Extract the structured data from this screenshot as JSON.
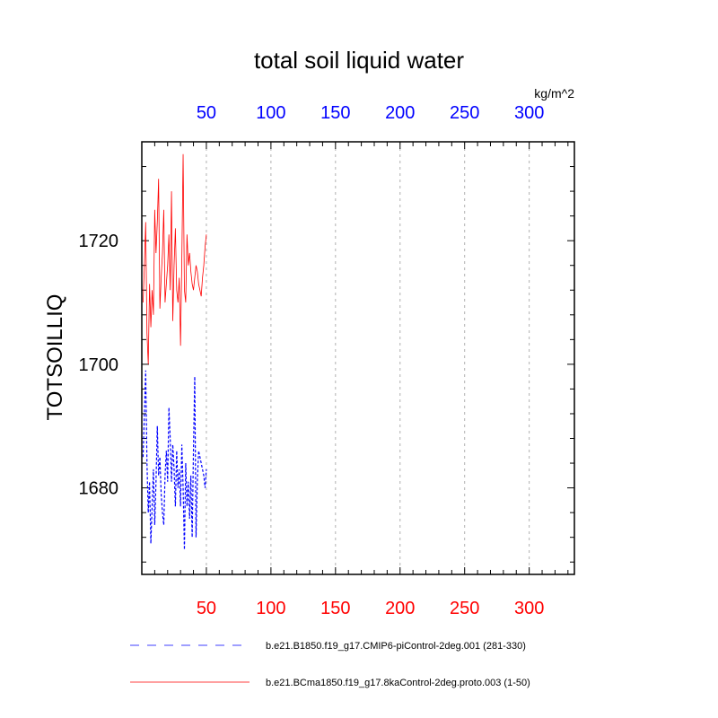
{
  "chart_data": {
    "type": "line",
    "title": "total soil liquid water",
    "units": "kg/m^2",
    "ylabel": "TOTSOILLIQ",
    "xlim": [
      0,
      335
    ],
    "ylim": [
      1666,
      1736
    ],
    "x_ticks_bottom": [
      50,
      100,
      150,
      200,
      250,
      300
    ],
    "x_ticks_top": [
      50,
      100,
      150,
      200,
      250,
      300
    ],
    "y_ticks": [
      1680,
      1700,
      1720
    ],
    "grid": "vertical dashed at major x ticks",
    "legend_position": "bottom",
    "series": [
      {
        "name": "b.e21.B1850.f19_g17.CMIP6-piControl-2deg.001 (281-330)",
        "color": "#0000ff",
        "style": "dashed",
        "x": [
          1,
          2,
          3,
          4,
          5,
          6,
          7,
          8,
          9,
          10,
          11,
          12,
          13,
          14,
          15,
          16,
          17,
          18,
          19,
          20,
          21,
          22,
          23,
          24,
          25,
          26,
          27,
          28,
          29,
          30,
          31,
          32,
          33,
          34,
          35,
          36,
          37,
          38,
          39,
          40,
          41,
          42,
          43,
          44,
          45,
          46,
          47,
          48,
          49,
          50
        ],
        "values": [
          1685,
          1692,
          1699,
          1684,
          1676,
          1681,
          1671,
          1677,
          1683,
          1674,
          1681,
          1690,
          1682,
          1685,
          1679,
          1676,
          1674,
          1682,
          1686,
          1681,
          1693,
          1688,
          1681,
          1687,
          1683,
          1677,
          1686,
          1680,
          1683,
          1677,
          1687,
          1680,
          1670,
          1684,
          1677,
          1681,
          1675,
          1682,
          1672,
          1686,
          1698,
          1672,
          1681,
          1686,
          1685,
          1684,
          1683,
          1682,
          1680,
          1683
        ]
      },
      {
        "name": "b.e21.BCma1850.f19_g17.8kaControl-2deg.proto.003 (1-50)",
        "color": "#ff0000",
        "style": "solid",
        "x": [
          1,
          2,
          3,
          4,
          5,
          6,
          7,
          8,
          9,
          10,
          11,
          12,
          13,
          14,
          15,
          16,
          17,
          18,
          19,
          20,
          21,
          22,
          23,
          24,
          25,
          26,
          27,
          28,
          29,
          30,
          31,
          32,
          33,
          34,
          35,
          36,
          37,
          38,
          39,
          40,
          41,
          42,
          43,
          44,
          45,
          46,
          47,
          48,
          49,
          50
        ],
        "values": [
          1710,
          1716,
          1723,
          1705,
          1700,
          1713,
          1706,
          1712,
          1708,
          1725,
          1718,
          1723,
          1730,
          1709,
          1714,
          1718,
          1725,
          1710,
          1713,
          1716,
          1721,
          1712,
          1728,
          1707,
          1716,
          1722,
          1712,
          1710,
          1714,
          1703,
          1717,
          1734,
          1712,
          1710,
          1721,
          1716,
          1718,
          1715,
          1713,
          1712,
          1714,
          1716,
          1715,
          1713,
          1712,
          1711,
          1714,
          1716,
          1719,
          1721
        ]
      }
    ]
  }
}
